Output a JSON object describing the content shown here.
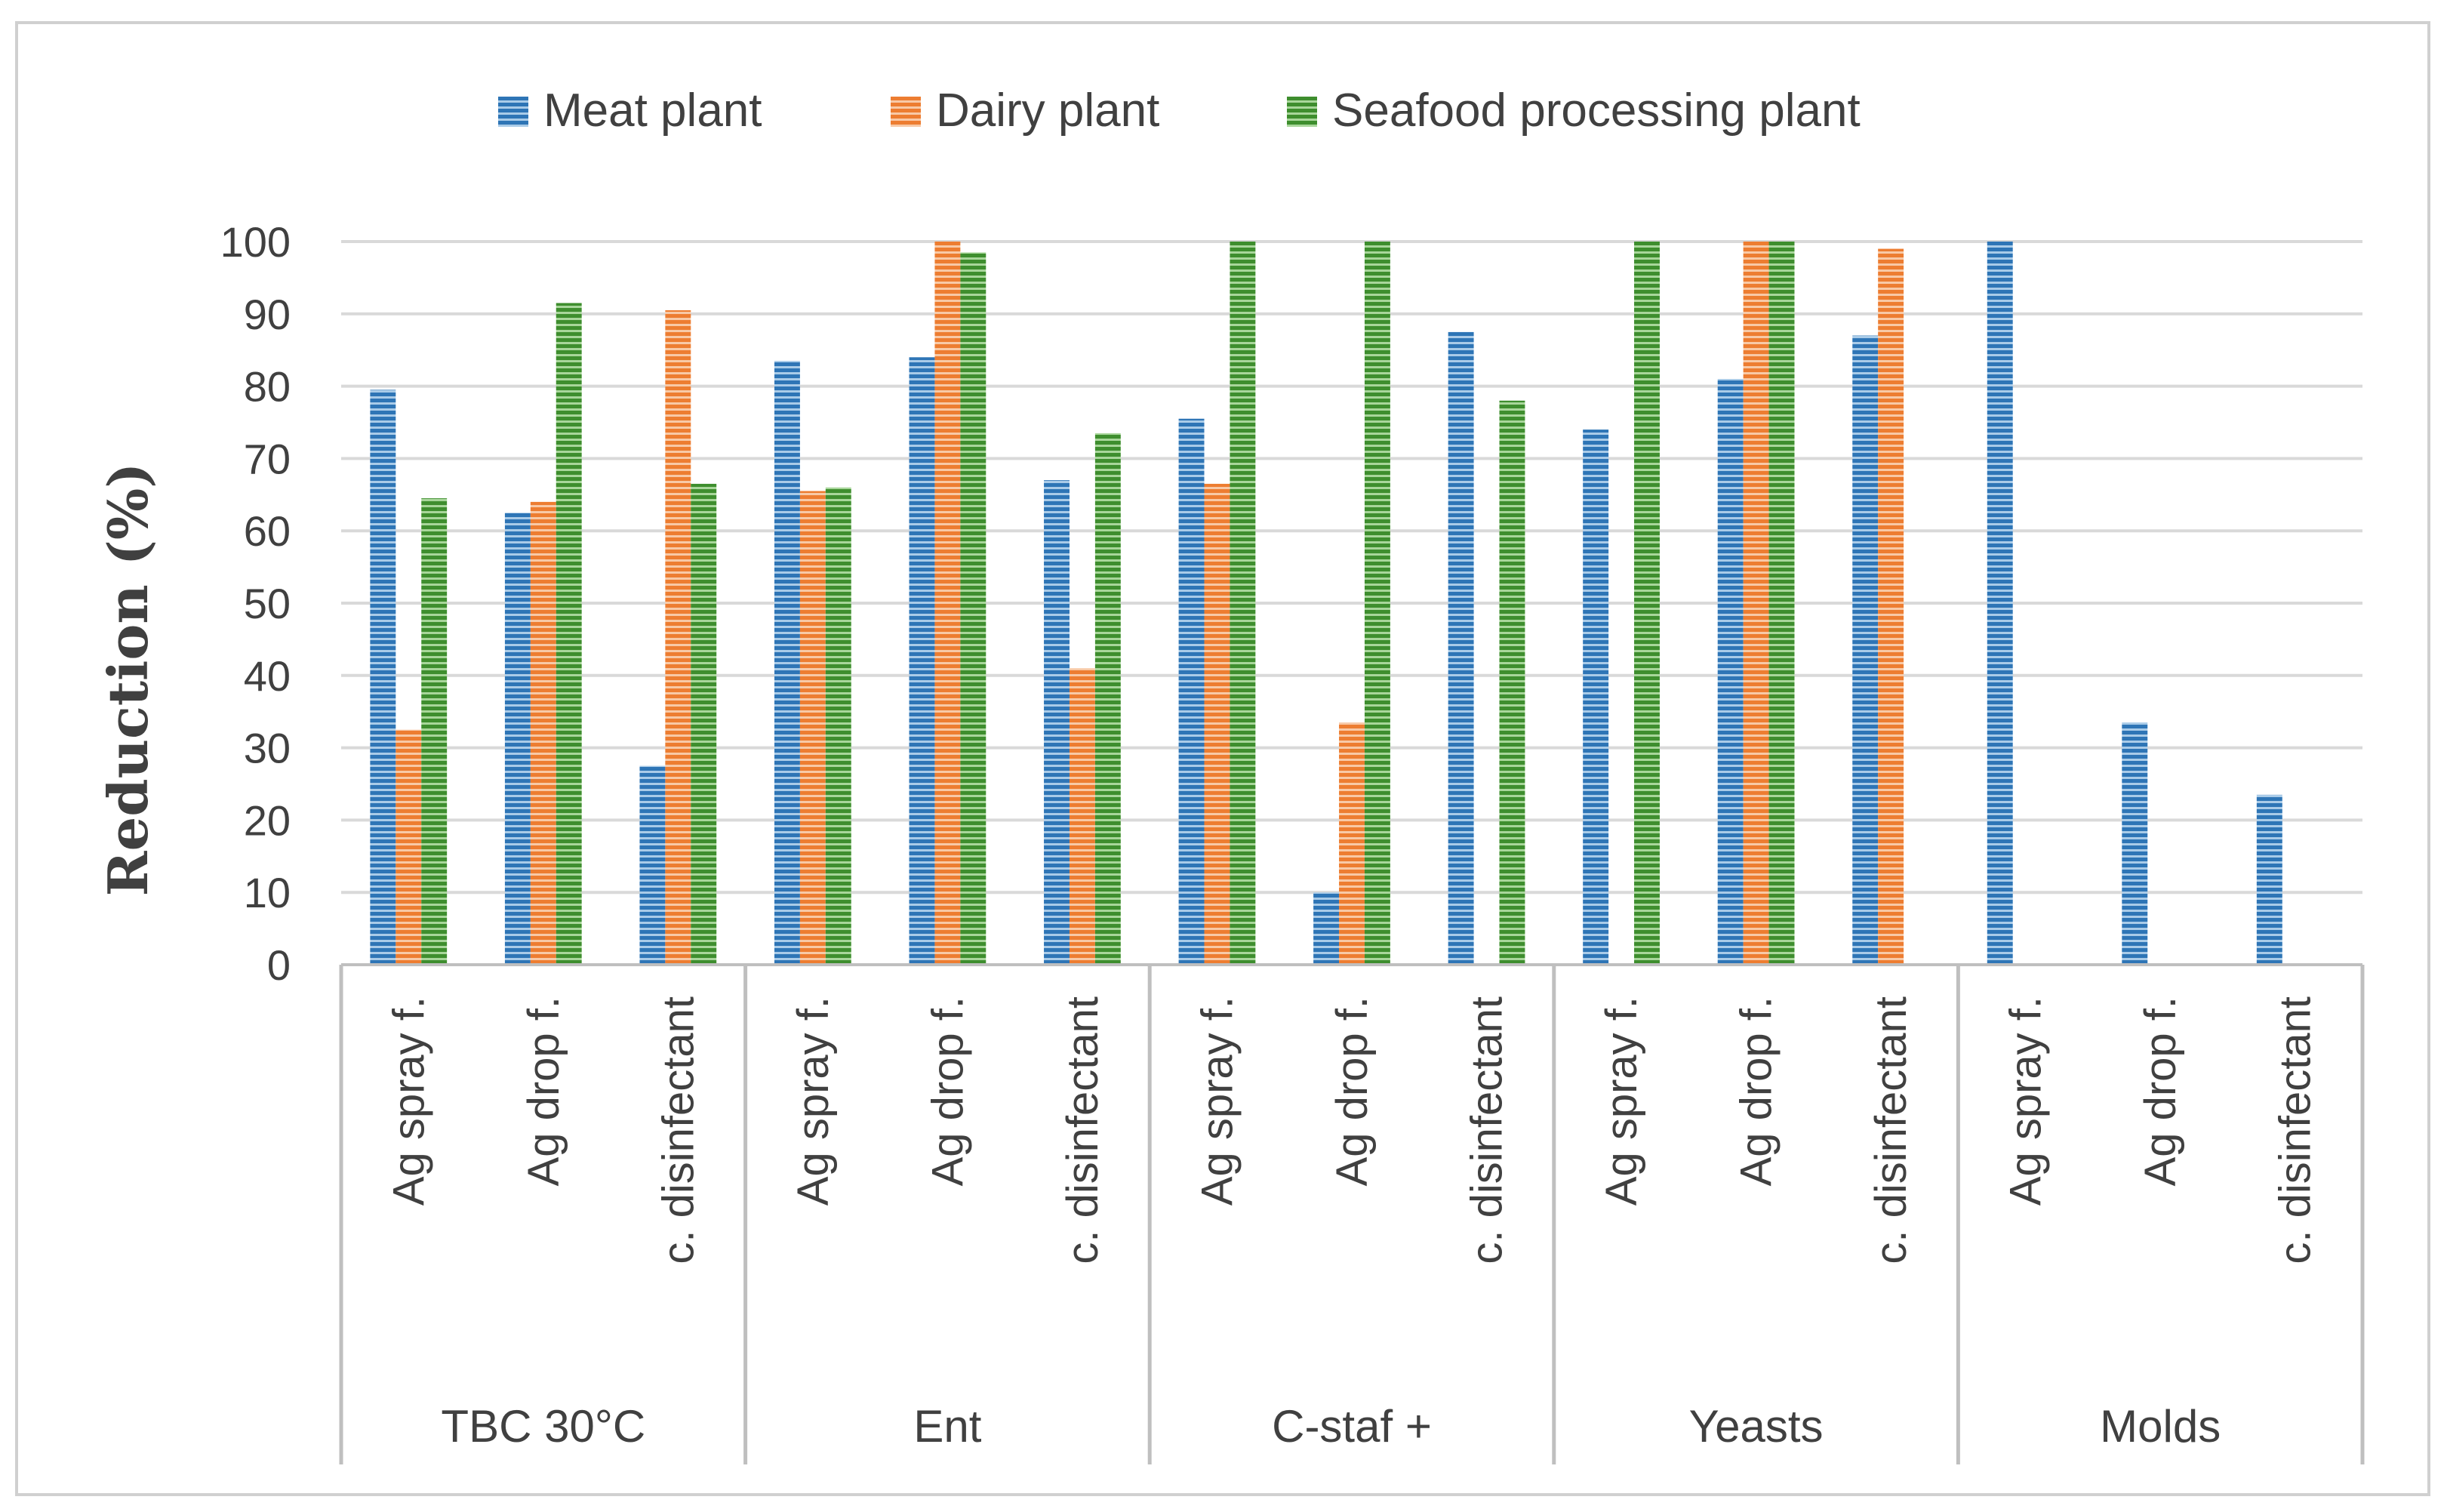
{
  "chart_data": {
    "type": "bar",
    "ylabel": "Reduction (%)",
    "ylim": [
      0,
      100
    ],
    "yticks": [
      0,
      10,
      20,
      30,
      40,
      50,
      60,
      70,
      80,
      90,
      100
    ],
    "grid": true,
    "legend_position": "top",
    "groups": [
      {
        "label": "TBC 30°C",
        "categories": [
          "Ag spray f.",
          "Ag drop f.",
          "c. disinfectant"
        ]
      },
      {
        "label": "Ent",
        "categories": [
          "Ag spray f.",
          "Ag drop f.",
          "c. disinfectant"
        ]
      },
      {
        "label": "C-staf +",
        "categories": [
          "Ag spray f.",
          "Ag drop f.",
          "c. disinfectant"
        ]
      },
      {
        "label": "Yeasts",
        "categories": [
          "Ag spray f.",
          "Ag drop f.",
          "c. disinfectant"
        ]
      },
      {
        "label": "Molds",
        "categories": [
          "Ag spray f.",
          "Ag drop f.",
          "c. disinfectant"
        ]
      }
    ],
    "series": [
      {
        "name": "Meat plant",
        "color": "#2E75B6",
        "values": [
          79.5,
          62.5,
          27.5,
          83.5,
          84,
          67,
          75.5,
          10,
          87.5,
          74,
          81,
          87,
          100,
          33.5,
          23.5
        ]
      },
      {
        "name": "Dairy plant",
        "color": "#ED7D31",
        "values": [
          32.5,
          64,
          90.5,
          65.5,
          100,
          41,
          66.5,
          33.5,
          0,
          0,
          100,
          99,
          0,
          0,
          0
        ]
      },
      {
        "name": "Seafood processing plant",
        "color": "#4C9A2A",
        "values": [
          64.5,
          91.5,
          66.5,
          66,
          98.5,
          73.5,
          100,
          100,
          78,
          100,
          100,
          0,
          0,
          0,
          0
        ]
      }
    ]
  }
}
